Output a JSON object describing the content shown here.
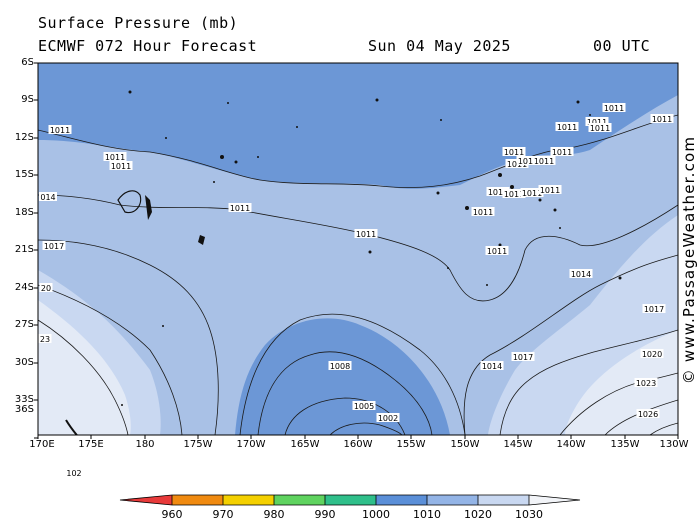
{
  "header": {
    "title": "Surface Pressure (mb)",
    "model": "ECMWF 072 Hour Forecast",
    "date": "Sun 04 May 2025",
    "time": "00 UTC"
  },
  "credit": "© www.PassageWeather.com",
  "map": {
    "lat_labels": [
      "6S",
      "9S",
      "12S",
      "15S",
      "18S",
      "21S",
      "24S",
      "27S",
      "30S",
      "33S",
      "36S"
    ],
    "lon_labels": [
      "170E",
      "175E",
      "180",
      "175W",
      "170W",
      "165W",
      "160W",
      "155W",
      "150W",
      "145W",
      "140W",
      "135W",
      "130W"
    ],
    "isobar_labels": [
      "1011",
      "1011",
      "1011",
      "1011",
      "1011",
      "1011",
      "1011",
      "1011",
      "1011",
      "1011",
      "1011",
      "1011",
      "1011",
      "1011",
      "1011",
      "1011",
      "1011",
      "1011",
      "1011",
      "1011",
      "1011",
      "014",
      "1017",
      "20",
      "23",
      "1002",
      "1005",
      "1008",
      "1014",
      "1014",
      "1017",
      "1017",
      "1020",
      "1023",
      "1026",
      "102"
    ]
  },
  "colorbar": {
    "labels": [
      "960",
      "970",
      "980",
      "990",
      "1000",
      "1010",
      "1020",
      "1030"
    ],
    "colors": [
      "#e83a3a",
      "#f08a10",
      "#f4d000",
      "#5fd35f",
      "#2fbf8a",
      "#5b8fd8",
      "#93b4e6",
      "#c9d8f1",
      "#f2f4f8"
    ]
  }
}
